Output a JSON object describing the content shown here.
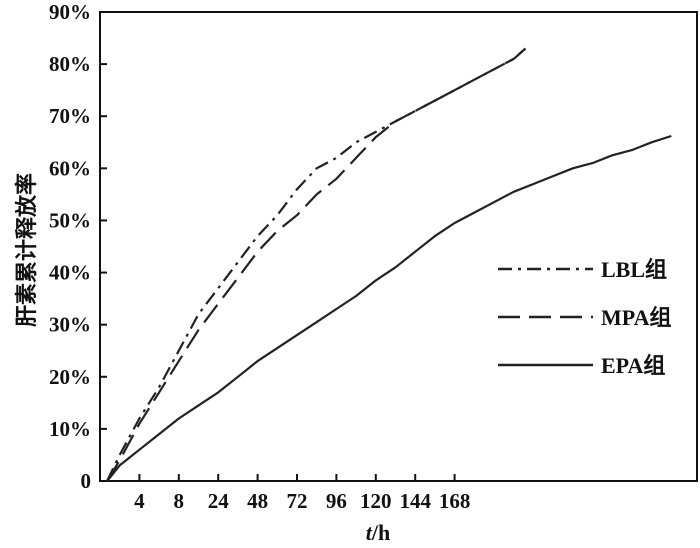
{
  "chart_data": {
    "type": "line",
    "xlabel_italic": "t",
    "xlabel_rest": "/h",
    "ylabel": "肝素累计释放率",
    "x_tick_labels": [
      "4",
      "8",
      "24",
      "48",
      "72",
      "96",
      "120",
      "144",
      "168"
    ],
    "y_tick_labels": [
      "0",
      "10%",
      "20%",
      "30%",
      "40%",
      "50%",
      "60%",
      "70%",
      "80%",
      "90%"
    ],
    "ylim": [
      0,
      90
    ],
    "grid": false,
    "legend_position": "right-middle",
    "series": [
      {
        "name": "LBL组",
        "style": "dashdot",
        "points": [
          [
            0.18,
            0
          ],
          [
            0.5,
            5
          ],
          [
            1,
            12
          ],
          [
            1.5,
            18
          ],
          [
            2,
            25
          ],
          [
            2.5,
            32
          ],
          [
            3,
            37
          ],
          [
            3.5,
            42
          ],
          [
            4,
            47
          ],
          [
            4.5,
            51
          ],
          [
            5,
            56
          ],
          [
            5.5,
            60
          ],
          [
            6,
            62
          ],
          [
            6.5,
            65
          ],
          [
            7,
            67
          ],
          [
            7.5,
            69
          ],
          [
            8,
            71
          ],
          [
            8.5,
            73
          ],
          [
            9,
            75
          ],
          [
            9.5,
            77
          ],
          [
            10,
            79
          ],
          [
            10.5,
            81
          ],
          [
            10.8,
            83
          ]
        ]
      },
      {
        "name": "MPA组",
        "style": "dashed",
        "points": [
          [
            0.18,
            0
          ],
          [
            0.5,
            4
          ],
          [
            1,
            11
          ],
          [
            1.5,
            17
          ],
          [
            2,
            23
          ],
          [
            2.5,
            29
          ],
          [
            3,
            34
          ],
          [
            3.5,
            39
          ],
          [
            4,
            44
          ],
          [
            4.5,
            48
          ],
          [
            5,
            51
          ],
          [
            5.5,
            55
          ],
          [
            6,
            58
          ],
          [
            6.5,
            62
          ],
          [
            7,
            66
          ],
          [
            7.5,
            69
          ],
          [
            8,
            71
          ],
          [
            8.5,
            73
          ],
          [
            9,
            75
          ],
          [
            9.5,
            77
          ],
          [
            10,
            79
          ],
          [
            10.5,
            81
          ],
          [
            10.8,
            83
          ]
        ]
      },
      {
        "name": "EPA组",
        "style": "solid",
        "points": [
          [
            0.18,
            0
          ],
          [
            0.5,
            3
          ],
          [
            1,
            6
          ],
          [
            1.5,
            9
          ],
          [
            2,
            12
          ],
          [
            2.5,
            14.5
          ],
          [
            3,
            17
          ],
          [
            3.5,
            20
          ],
          [
            4,
            23
          ],
          [
            4.5,
            25.5
          ],
          [
            5,
            28
          ],
          [
            5.5,
            30.5
          ],
          [
            6,
            33
          ],
          [
            6.5,
            35.5
          ],
          [
            7,
            38.5
          ],
          [
            7.5,
            41
          ],
          [
            8,
            44
          ],
          [
            8.5,
            47
          ],
          [
            9,
            49.5
          ],
          [
            9.5,
            51.5
          ],
          [
            10,
            53.5
          ],
          [
            10.5,
            55.5
          ],
          [
            11,
            57
          ],
          [
            11.5,
            58.5
          ],
          [
            12,
            60
          ],
          [
            12.5,
            61
          ],
          [
            13,
            62.5
          ],
          [
            13.5,
            63.5
          ],
          [
            14,
            65
          ],
          [
            14.5,
            66.2
          ]
        ]
      }
    ]
  }
}
